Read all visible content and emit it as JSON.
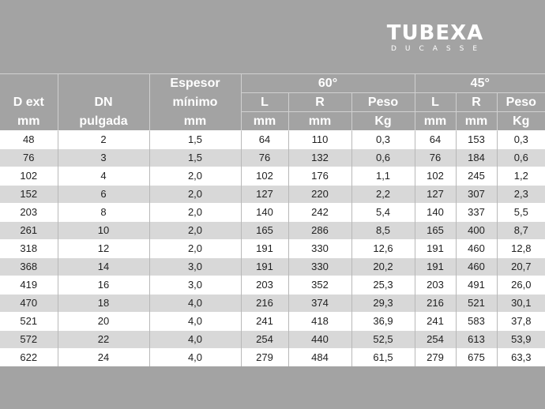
{
  "logo": {
    "main": "TUBEXA",
    "sub": "DUCASSE"
  },
  "headers": {
    "dext": [
      "D ext",
      "mm"
    ],
    "dn": [
      "DN",
      "pulgada"
    ],
    "espesor": [
      "Espesor",
      "mínimo",
      "mm"
    ],
    "g60": "60°",
    "g45": "45°",
    "sub": [
      "L",
      "R",
      "Peso",
      "L",
      "R",
      "Peso"
    ],
    "units": [
      "mm",
      "mm",
      "Kg",
      "mm",
      "mm",
      "Kg"
    ]
  },
  "rows": [
    [
      "48",
      "2",
      "1,5",
      "64",
      "110",
      "0,3",
      "64",
      "153",
      "0,3"
    ],
    [
      "76",
      "3",
      "1,5",
      "76",
      "132",
      "0,6",
      "76",
      "184",
      "0,6"
    ],
    [
      "102",
      "4",
      "2,0",
      "102",
      "176",
      "1,1",
      "102",
      "245",
      "1,2"
    ],
    [
      "152",
      "6",
      "2,0",
      "127",
      "220",
      "2,2",
      "127",
      "307",
      "2,3"
    ],
    [
      "203",
      "8",
      "2,0",
      "140",
      "242",
      "5,4",
      "140",
      "337",
      "5,5"
    ],
    [
      "261",
      "10",
      "2,0",
      "165",
      "286",
      "8,5",
      "165",
      "400",
      "8,7"
    ],
    [
      "318",
      "12",
      "2,0",
      "191",
      "330",
      "12,6",
      "191",
      "460",
      "12,8"
    ],
    [
      "368",
      "14",
      "3,0",
      "191",
      "330",
      "20,2",
      "191",
      "460",
      "20,7"
    ],
    [
      "419",
      "16",
      "3,0",
      "203",
      "352",
      "25,3",
      "203",
      "491",
      "26,0"
    ],
    [
      "470",
      "18",
      "4,0",
      "216",
      "374",
      "29,3",
      "216",
      "521",
      "30,1"
    ],
    [
      "521",
      "20",
      "4,0",
      "241",
      "418",
      "36,9",
      "241",
      "583",
      "37,8"
    ],
    [
      "572",
      "22",
      "4,0",
      "254",
      "440",
      "52,5",
      "254",
      "613",
      "53,9"
    ],
    [
      "622",
      "24",
      "4,0",
      "279",
      "484",
      "61,5",
      "279",
      "675",
      "63,3"
    ]
  ]
}
